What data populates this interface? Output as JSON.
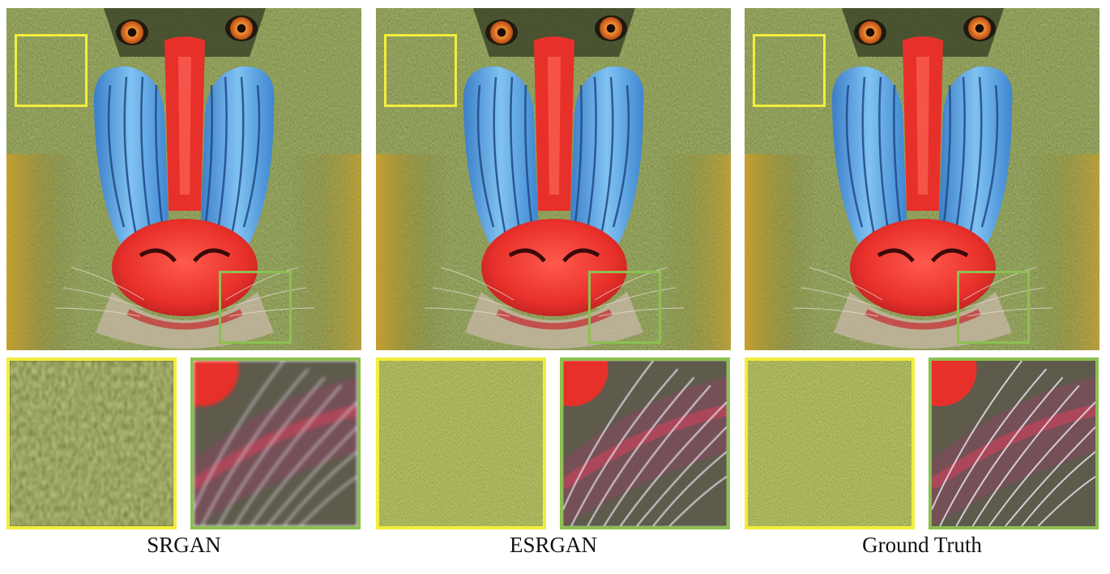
{
  "figure": {
    "panels": [
      {
        "id": "srgan",
        "caption": "SRGAN"
      },
      {
        "id": "esrgan",
        "caption": "ESRGAN"
      },
      {
        "id": "gt",
        "caption": "Ground Truth"
      }
    ],
    "colors": {
      "yellow_box": "#f2ee3a",
      "green_box": "#8cc050",
      "fur": "#5b6b2e",
      "nose": "#e8302a",
      "cheek": "#4f9ee0",
      "eye": "#d9631c"
    }
  }
}
